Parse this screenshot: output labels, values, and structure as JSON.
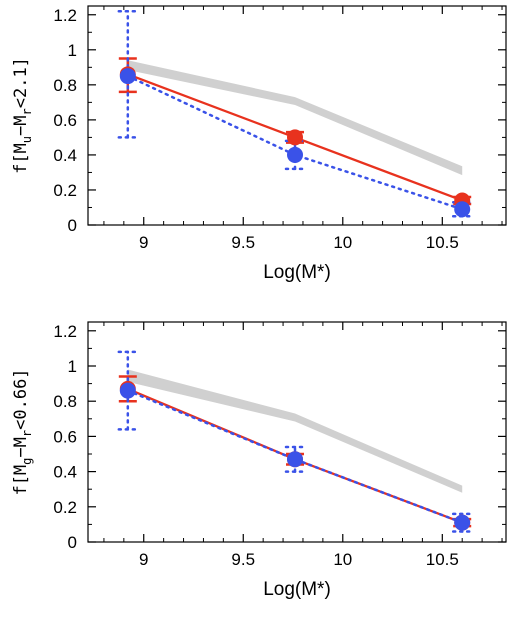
{
  "chart_data": [
    {
      "type": "line",
      "ylabel": {
        "base": "f[M",
        "sub1": "u",
        "mid": "−M",
        "sub2": "r",
        "tail": "<2.1]"
      },
      "xlabel": "Log(M*)",
      "xlim": [
        8.72,
        10.82
      ],
      "ylim": [
        0,
        1.25
      ],
      "xticks": [
        9,
        9.5,
        10,
        10.5
      ],
      "xtick_labels": [
        "9",
        "9.5",
        "10",
        "10.5"
      ],
      "yticks": [
        0,
        0.2,
        0.4,
        0.6,
        0.8,
        1,
        1.2
      ],
      "ytick_labels": [
        "0",
        "0.2",
        "0.4",
        "0.6",
        "0.8",
        "1",
        "1.2"
      ],
      "series": [
        {
          "style": "band",
          "color": "#d0d0d0",
          "x": [
            8.92,
            9.76,
            10.6
          ],
          "lower": [
            0.885,
            0.685,
            0.285
          ],
          "upper": [
            0.94,
            0.73,
            0.335
          ]
        },
        {
          "style": "solid",
          "color": "#e8321e",
          "x": [
            8.92,
            9.76,
            10.6
          ],
          "y": [
            0.86,
            0.5,
            0.14
          ],
          "err_low": [
            0.1,
            0.03,
            0.02
          ],
          "err_high": [
            0.09,
            0.03,
            0.02
          ]
        },
        {
          "style": "dotted",
          "color": "#3a52e8",
          "x": [
            8.92,
            9.76,
            10.6
          ],
          "y": [
            0.85,
            0.4,
            0.09
          ],
          "err_low": [
            0.35,
            0.08,
            0.04
          ],
          "err_high": [
            0.37,
            0.08,
            0.04
          ]
        }
      ]
    },
    {
      "type": "line",
      "ylabel": {
        "base": "f[M",
        "sub1": "g",
        "mid": "−M",
        "sub2": "r",
        "tail": "<0.66]"
      },
      "xlabel": "Log(M*)",
      "xlim": [
        8.72,
        10.82
      ],
      "ylim": [
        0,
        1.25
      ],
      "xticks": [
        9,
        9.5,
        10,
        10.5
      ],
      "xtick_labels": [
        "9",
        "9.5",
        "10",
        "10.5"
      ],
      "yticks": [
        0,
        0.2,
        0.4,
        0.6,
        0.8,
        1,
        1.2
      ],
      "ytick_labels": [
        "0",
        "0.2",
        "0.4",
        "0.6",
        "0.8",
        "1",
        "1.2"
      ],
      "series": [
        {
          "style": "band",
          "color": "#d0d0d0",
          "x": [
            8.92,
            9.76,
            10.6
          ],
          "lower": [
            0.91,
            0.685,
            0.28
          ],
          "upper": [
            0.98,
            0.73,
            0.32
          ]
        },
        {
          "style": "solid",
          "color": "#e8321e",
          "x": [
            8.92,
            9.76,
            10.6
          ],
          "y": [
            0.87,
            0.47,
            0.11
          ],
          "err_low": [
            0.07,
            0.03,
            0.02
          ],
          "err_high": [
            0.07,
            0.03,
            0.02
          ]
        },
        {
          "style": "dotted",
          "color": "#3a52e8",
          "x": [
            8.92,
            9.76,
            10.6
          ],
          "y": [
            0.86,
            0.47,
            0.11
          ],
          "err_low": [
            0.22,
            0.07,
            0.05
          ],
          "err_high": [
            0.22,
            0.07,
            0.05
          ]
        }
      ]
    }
  ]
}
